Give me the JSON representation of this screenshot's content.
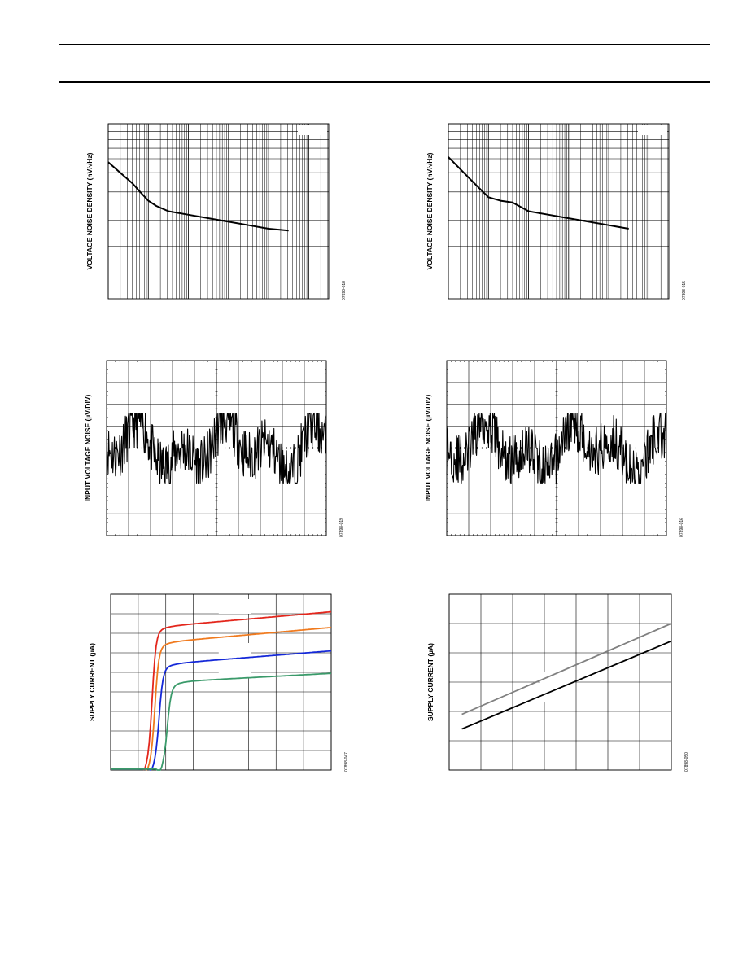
{
  "page": {
    "title": ""
  },
  "chart_data": [
    {
      "id": "noise-density-left",
      "type": "line",
      "ylabel": "VOLTAGE NOISE DENSITY (nV/√Hz)",
      "figure_id": "07898-018",
      "xscale": "log",
      "xlim_decades": [
        0,
        5.5
      ],
      "ylim": [
        0,
        10
      ],
      "grid": true,
      "series": [
        {
          "name": "",
          "color": "#000000",
          "x": [
            0,
            0.3,
            0.6,
            0.8,
            1.0,
            1.2,
            1.5,
            2.0,
            2.5,
            3.0,
            3.5,
            4.0,
            4.5
          ],
          "y": [
            7.8,
            7.2,
            6.6,
            6.1,
            5.6,
            5.3,
            5.0,
            4.8,
            4.6,
            4.4,
            4.2,
            4.0,
            3.9
          ]
        }
      ]
    },
    {
      "id": "noise-density-right",
      "type": "line",
      "ylabel": "VOLTAGE NOISE DENSITY (nV/√Hz)",
      "figure_id": "07898-015",
      "xscale": "log",
      "xlim_decades": [
        0,
        5.5
      ],
      "ylim": [
        0,
        10
      ],
      "grid": true,
      "series": [
        {
          "name": "",
          "color": "#000000",
          "x": [
            0,
            0.3,
            0.6,
            1.0,
            1.3,
            1.6,
            2.0,
            2.5,
            3.0,
            3.5,
            4.0,
            4.5
          ],
          "y": [
            8.1,
            7.4,
            6.7,
            5.8,
            5.6,
            5.5,
            5.0,
            4.8,
            4.6,
            4.4,
            4.2,
            4.0
          ]
        }
      ]
    },
    {
      "id": "input-noise-left",
      "type": "line",
      "ylabel": "INPUT VOLTAGE NOISE (µV/DIV)",
      "figure_id": "07898-019",
      "xlim": [
        0,
        10
      ],
      "ylim": [
        -4,
        4
      ],
      "grid": true,
      "seed": 11,
      "series": [
        {
          "name": "",
          "color": "#000000"
        }
      ]
    },
    {
      "id": "input-noise-right",
      "type": "line",
      "ylabel": "INPUT VOLTAGE NOISE (µV/DIV)",
      "figure_id": "07898-016",
      "xlim": [
        0,
        10
      ],
      "ylim": [
        -4,
        4
      ],
      "grid": true,
      "seed": 29,
      "series": [
        {
          "name": "",
          "color": "#000000"
        }
      ]
    },
    {
      "id": "supply-current-left",
      "type": "line",
      "ylabel": "SUPPLY CURRENT (µA)",
      "figure_id": "07898-047",
      "xlim": [
        0,
        8
      ],
      "ylim": [
        0,
        9
      ],
      "grid": true,
      "series": [
        {
          "name": "",
          "color": "#e3261c",
          "vt": 1.5,
          "plateau": 6.9,
          "end": 8.05
        },
        {
          "name": "",
          "color": "#f07a1e",
          "vt": 1.6,
          "plateau": 6.1,
          "end": 7.25
        },
        {
          "name": "",
          "color": "#1428d8",
          "vt": 1.75,
          "plateau": 5.0,
          "end": 6.05
        },
        {
          "name": "",
          "color": "#3a9a6a",
          "vt": 2.05,
          "plateau": 4.1,
          "end": 4.9
        }
      ]
    },
    {
      "id": "supply-current-right",
      "type": "line",
      "ylabel": "SUPPLY CURRENT (µA)",
      "figure_id": "07898-050",
      "xlim": [
        0,
        7
      ],
      "ylim": [
        0,
        6
      ],
      "grid": true,
      "series": [
        {
          "name": "",
          "color": "#808080",
          "x": [
            0.4,
            7.0
          ],
          "y": [
            1.9,
            5.0
          ]
        },
        {
          "name": "",
          "color": "#000000",
          "x": [
            0.4,
            7.0
          ],
          "y": [
            1.4,
            4.4
          ]
        }
      ]
    }
  ]
}
